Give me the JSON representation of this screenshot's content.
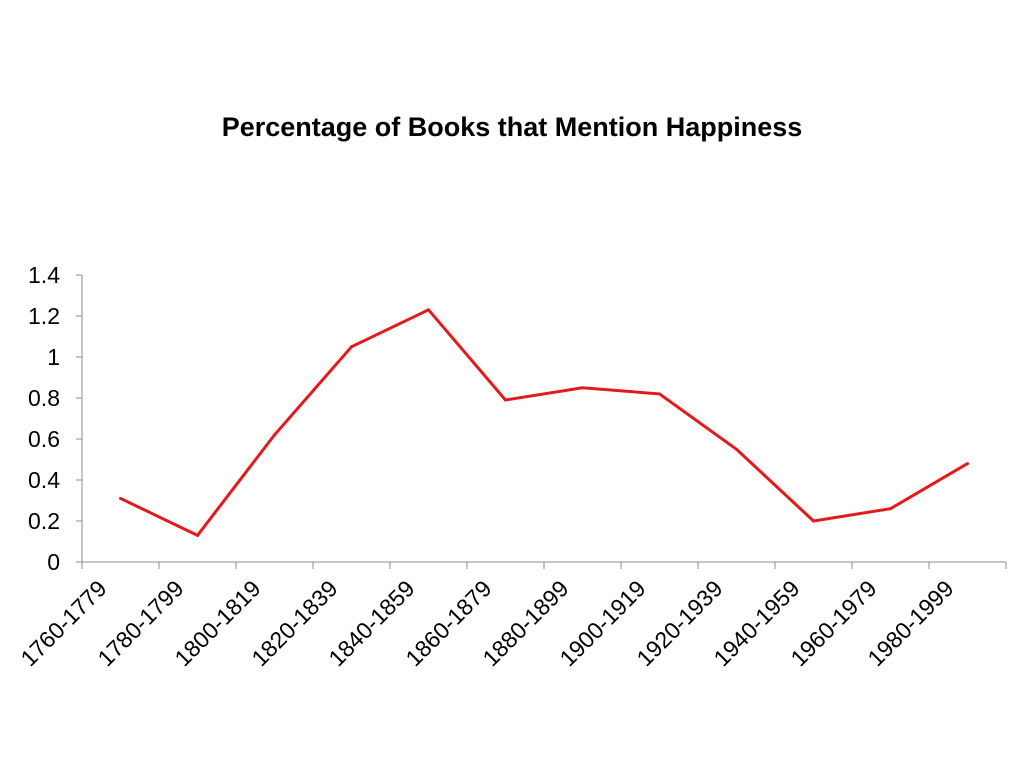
{
  "chart_data": {
    "type": "line",
    "title": "Percentage of Books that Mention Happiness",
    "xlabel": "",
    "ylabel": "",
    "categories": [
      "1760-1779",
      "1780-1799",
      "1800-1819",
      "1820-1839",
      "1840-1859",
      "1860-1879",
      "1880-1899",
      "1900-1919",
      "1920-1939",
      "1940-1959",
      "1960-1979",
      "1980-1999"
    ],
    "series": [
      {
        "values": [
          0.31,
          0.13,
          0.62,
          1.05,
          1.23,
          0.79,
          0.85,
          0.82,
          0.55,
          0.2,
          0.26,
          0.48
        ],
        "color": "#e31a1c"
      }
    ],
    "ylim": [
      0,
      1.4
    ],
    "yticks": [
      "0",
      "0.2",
      "0.4",
      "0.6",
      "0.8",
      "1",
      "1.2",
      "1.4"
    ],
    "grid": false,
    "legend": "none"
  }
}
